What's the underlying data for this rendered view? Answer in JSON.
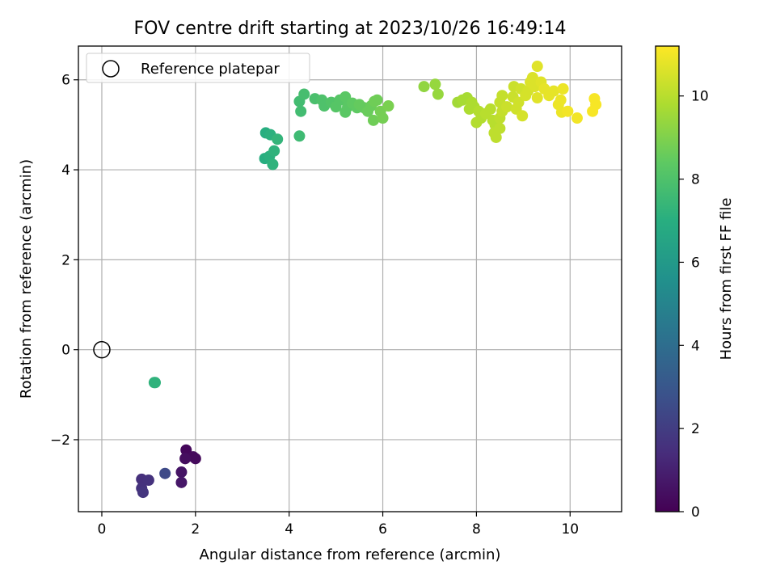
{
  "chart_data": {
    "type": "scatter",
    "title": "FOV centre drift starting at 2023/10/26 16:49:14",
    "xlabel": "Angular distance from reference (arcmin)",
    "ylabel": "Rotation from reference (arcmin)",
    "xlim": [
      -0.5,
      11.1
    ],
    "ylim": [
      -3.6,
      6.75
    ],
    "xticks": [
      0,
      2,
      4,
      6,
      8,
      10
    ],
    "yticks": [
      -2,
      0,
      2,
      4,
      6
    ],
    "grid": true,
    "legend": {
      "placement": "top-left",
      "entries": [
        "Reference platepar"
      ]
    },
    "colorbar": {
      "label": "Hours from first FF file",
      "min": 0,
      "max": 11.2,
      "ticks": [
        0,
        2,
        4,
        6,
        8,
        10
      ],
      "colormap": "viridis"
    },
    "reference": {
      "x": 0,
      "y": 0,
      "label": "Reference platepar"
    },
    "points": [
      {
        "x": 1.8,
        "y": -2.23,
        "c": 0.2
      },
      {
        "x": 1.95,
        "y": -2.38,
        "c": 0.3
      },
      {
        "x": 2.0,
        "y": -2.42,
        "c": 0.3
      },
      {
        "x": 1.78,
        "y": -2.42,
        "c": 0.4
      },
      {
        "x": 1.7,
        "y": -2.72,
        "c": 0.6
      },
      {
        "x": 1.7,
        "y": -2.95,
        "c": 0.7
      },
      {
        "x": 0.85,
        "y": -2.88,
        "c": 1.5
      },
      {
        "x": 0.88,
        "y": -2.92,
        "c": 1.5
      },
      {
        "x": 1.0,
        "y": -2.9,
        "c": 1.6
      },
      {
        "x": 0.85,
        "y": -3.08,
        "c": 1.6
      },
      {
        "x": 0.88,
        "y": -3.17,
        "c": 1.7
      },
      {
        "x": 1.35,
        "y": -2.75,
        "c": 2.5
      },
      {
        "x": 1.12,
        "y": -0.73,
        "c": 7.2
      },
      {
        "x": 1.14,
        "y": -0.73,
        "c": 7.2
      },
      {
        "x": 3.5,
        "y": 4.82,
        "c": 7.0
      },
      {
        "x": 3.6,
        "y": 4.78,
        "c": 7.1
      },
      {
        "x": 3.75,
        "y": 4.68,
        "c": 7.3
      },
      {
        "x": 3.48,
        "y": 4.25,
        "c": 7.0
      },
      {
        "x": 3.58,
        "y": 4.3,
        "c": 7.1
      },
      {
        "x": 3.68,
        "y": 4.42,
        "c": 7.2
      },
      {
        "x": 3.65,
        "y": 4.12,
        "c": 7.2
      },
      {
        "x": 4.22,
        "y": 4.75,
        "c": 7.6
      },
      {
        "x": 4.25,
        "y": 5.3,
        "c": 7.7
      },
      {
        "x": 4.22,
        "y": 5.52,
        "c": 7.7
      },
      {
        "x": 4.32,
        "y": 5.68,
        "c": 7.8
      },
      {
        "x": 4.55,
        "y": 5.58,
        "c": 7.9
      },
      {
        "x": 4.7,
        "y": 5.55,
        "c": 8.0
      },
      {
        "x": 4.75,
        "y": 5.42,
        "c": 8.0
      },
      {
        "x": 4.9,
        "y": 5.5,
        "c": 8.1
      },
      {
        "x": 5.0,
        "y": 5.4,
        "c": 8.2
      },
      {
        "x": 5.08,
        "y": 5.55,
        "c": 8.2
      },
      {
        "x": 5.2,
        "y": 5.62,
        "c": 8.3
      },
      {
        "x": 5.25,
        "y": 5.4,
        "c": 8.3
      },
      {
        "x": 5.2,
        "y": 5.28,
        "c": 8.3
      },
      {
        "x": 5.35,
        "y": 5.48,
        "c": 8.4
      },
      {
        "x": 5.45,
        "y": 5.38,
        "c": 8.4
      },
      {
        "x": 5.5,
        "y": 5.45,
        "c": 8.5
      },
      {
        "x": 5.6,
        "y": 5.38,
        "c": 8.5
      },
      {
        "x": 5.68,
        "y": 5.3,
        "c": 8.6
      },
      {
        "x": 5.75,
        "y": 5.42,
        "c": 8.6
      },
      {
        "x": 5.82,
        "y": 5.52,
        "c": 8.7
      },
      {
        "x": 5.88,
        "y": 5.55,
        "c": 8.7
      },
      {
        "x": 5.8,
        "y": 5.1,
        "c": 8.7
      },
      {
        "x": 5.95,
        "y": 5.3,
        "c": 8.8
      },
      {
        "x": 6.0,
        "y": 5.15,
        "c": 8.8
      },
      {
        "x": 6.12,
        "y": 5.42,
        "c": 8.9
      },
      {
        "x": 6.88,
        "y": 5.85,
        "c": 9.3
      },
      {
        "x": 7.12,
        "y": 5.9,
        "c": 9.4
      },
      {
        "x": 7.18,
        "y": 5.68,
        "c": 9.4
      },
      {
        "x": 7.6,
        "y": 5.5,
        "c": 9.6
      },
      {
        "x": 7.7,
        "y": 5.55,
        "c": 9.7
      },
      {
        "x": 7.8,
        "y": 5.6,
        "c": 9.7
      },
      {
        "x": 7.9,
        "y": 5.5,
        "c": 9.8
      },
      {
        "x": 7.85,
        "y": 5.35,
        "c": 9.8
      },
      {
        "x": 7.95,
        "y": 5.4,
        "c": 9.8
      },
      {
        "x": 8.05,
        "y": 5.3,
        "c": 9.9
      },
      {
        "x": 8.1,
        "y": 5.15,
        "c": 9.9
      },
      {
        "x": 8.0,
        "y": 5.05,
        "c": 9.9
      },
      {
        "x": 8.2,
        "y": 5.25,
        "c": 10.0
      },
      {
        "x": 8.3,
        "y": 5.35,
        "c": 10.0
      },
      {
        "x": 8.35,
        "y": 5.1,
        "c": 10.0
      },
      {
        "x": 8.4,
        "y": 5.0,
        "c": 10.0
      },
      {
        "x": 8.38,
        "y": 4.82,
        "c": 10.1
      },
      {
        "x": 8.42,
        "y": 4.72,
        "c": 10.1
      },
      {
        "x": 8.5,
        "y": 4.92,
        "c": 10.1
      },
      {
        "x": 8.5,
        "y": 5.15,
        "c": 10.1
      },
      {
        "x": 8.55,
        "y": 5.3,
        "c": 10.2
      },
      {
        "x": 8.5,
        "y": 5.5,
        "c": 10.2
      },
      {
        "x": 8.55,
        "y": 5.65,
        "c": 10.2
      },
      {
        "x": 8.65,
        "y": 5.4,
        "c": 10.3
      },
      {
        "x": 8.78,
        "y": 5.62,
        "c": 10.3
      },
      {
        "x": 8.8,
        "y": 5.85,
        "c": 10.3
      },
      {
        "x": 8.85,
        "y": 5.35,
        "c": 10.4
      },
      {
        "x": 8.9,
        "y": 5.5,
        "c": 10.4
      },
      {
        "x": 8.95,
        "y": 5.8,
        "c": 10.4
      },
      {
        "x": 8.98,
        "y": 5.2,
        "c": 10.5
      },
      {
        "x": 9.05,
        "y": 5.65,
        "c": 10.5
      },
      {
        "x": 9.1,
        "y": 5.75,
        "c": 10.5
      },
      {
        "x": 9.15,
        "y": 5.95,
        "c": 10.6
      },
      {
        "x": 9.2,
        "y": 6.05,
        "c": 10.6
      },
      {
        "x": 9.25,
        "y": 5.85,
        "c": 10.6
      },
      {
        "x": 9.3,
        "y": 5.6,
        "c": 10.7
      },
      {
        "x": 9.3,
        "y": 6.3,
        "c": 10.7
      },
      {
        "x": 9.38,
        "y": 5.95,
        "c": 10.7
      },
      {
        "x": 9.45,
        "y": 5.8,
        "c": 10.8
      },
      {
        "x": 9.55,
        "y": 5.65,
        "c": 10.8
      },
      {
        "x": 9.65,
        "y": 5.75,
        "c": 10.8
      },
      {
        "x": 9.75,
        "y": 5.45,
        "c": 10.9
      },
      {
        "x": 9.8,
        "y": 5.55,
        "c": 10.9
      },
      {
        "x": 9.85,
        "y": 5.8,
        "c": 10.9
      },
      {
        "x": 9.82,
        "y": 5.28,
        "c": 10.9
      },
      {
        "x": 9.95,
        "y": 5.3,
        "c": 11.0
      },
      {
        "x": 10.15,
        "y": 5.15,
        "c": 11.0
      },
      {
        "x": 10.48,
        "y": 5.3,
        "c": 11.1
      },
      {
        "x": 10.52,
        "y": 5.58,
        "c": 11.1
      },
      {
        "x": 10.55,
        "y": 5.45,
        "c": 11.1
      }
    ]
  }
}
